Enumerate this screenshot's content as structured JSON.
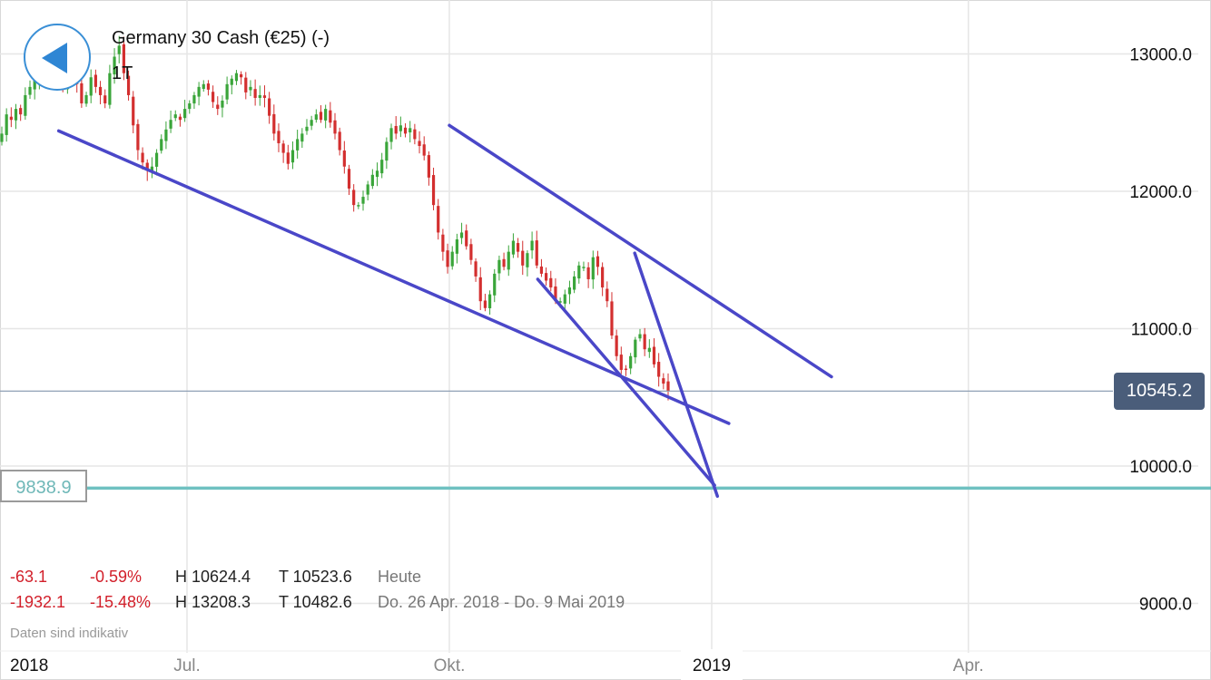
{
  "header": {
    "title": "Germany 30 Cash (€25) (-)",
    "period": "1T"
  },
  "price_tag": "10545.2",
  "target_tag": "9838.9",
  "stats": {
    "today": {
      "change": "-63.1",
      "pct": "-0.59%",
      "high": "H 10624.4",
      "low": "T 10523.6",
      "label": "Heute"
    },
    "range": {
      "change": "-1932.1",
      "pct": "-15.48%",
      "high": "H 13208.3",
      "low": "T 10482.6",
      "label": "Do. 26 Apr. 2018 - Do. 9 Mai 2019"
    }
  },
  "note": "Daten sind indikativ",
  "colors": {
    "up": "#3aa53a",
    "down": "#d32f2f",
    "trendline": "#4a47c8",
    "target_line": "#6fc1c1",
    "price_line": "#8fa0b5",
    "grid": "#e6e6e6"
  },
  "chart_data": {
    "type": "candlestick",
    "title": "Germany 30 Cash (€25) (-)",
    "xlabel": "",
    "ylabel": "",
    "ylim": [
      8900,
      13300
    ],
    "y_ticks": [
      "13000.0",
      "12000.0",
      "11000.0",
      "10000.0",
      "9000.0"
    ],
    "y_tick_values": [
      13000,
      12000,
      11000,
      10000,
      9000
    ],
    "x_ticks": [
      "2018",
      "Jul.",
      "Okt.",
      "2019",
      "Apr."
    ],
    "x_tick_dates": [
      "2018-04-26",
      "2018-07-01",
      "2018-10-01",
      "2019-01-01",
      "2019-04-01"
    ],
    "current_price": 10545.2,
    "target_level": 9838.9,
    "closes": [
      12420,
      12560,
      12520,
      12600,
      12560,
      12700,
      12760,
      12830,
      12880,
      12840,
      12950,
      12900,
      12870,
      12760,
      12820,
      12900,
      12780,
      12640,
      12700,
      12830,
      12760,
      12700,
      12640,
      12860,
      12980,
      13060,
      12860,
      12700,
      12480,
      12300,
      12210,
      12150,
      12180,
      12280,
      12380,
      12450,
      12520,
      12560,
      12520,
      12600,
      12640,
      12700,
      12760,
      12780,
      12740,
      12650,
      12600,
      12660,
      12780,
      12820,
      12860,
      12830,
      12720,
      12760,
      12680,
      12700,
      12680,
      12550,
      12420,
      12350,
      12280,
      12200,
      12300,
      12380,
      12420,
      12470,
      12520,
      12560,
      12520,
      12600,
      12500,
      12420,
      12300,
      12180,
      12020,
      11900,
      11900,
      11960,
      12050,
      12120,
      12150,
      12230,
      12360,
      12460,
      12420,
      12480,
      12420,
      12460,
      12380,
      12330,
      12260,
      12100,
      11900,
      11700,
      11560,
      11450,
      11560,
      11650,
      11700,
      11600,
      11500,
      11380,
      11200,
      11150,
      11250,
      11400,
      11500,
      11450,
      11560,
      11640,
      11560,
      11460,
      11550,
      11640,
      11460,
      11400,
      11350,
      11300,
      11200,
      11200,
      11250,
      11300,
      11380,
      11460,
      11450,
      11360,
      11520,
      11450,
      11300,
      11200,
      10950,
      10800,
      10700,
      10700,
      10800,
      10920,
      10960,
      10850,
      10860,
      10740,
      10650,
      10600,
      10545.2
    ],
    "trendlines": [
      {
        "from": [
          "2018-05-17",
          12440
        ],
        "to": [
          "2019-01-07",
          10310
        ]
      },
      {
        "from": [
          "2018-10-01",
          12480
        ],
        "to": [
          "2019-02-12",
          10650
        ]
      },
      {
        "from": [
          "2018-11-01",
          11360
        ],
        "to": [
          "2019-01-02",
          9860
        ]
      },
      {
        "from": [
          "2018-12-05",
          11550
        ],
        "to": [
          "2019-01-03",
          9780
        ]
      }
    ]
  }
}
